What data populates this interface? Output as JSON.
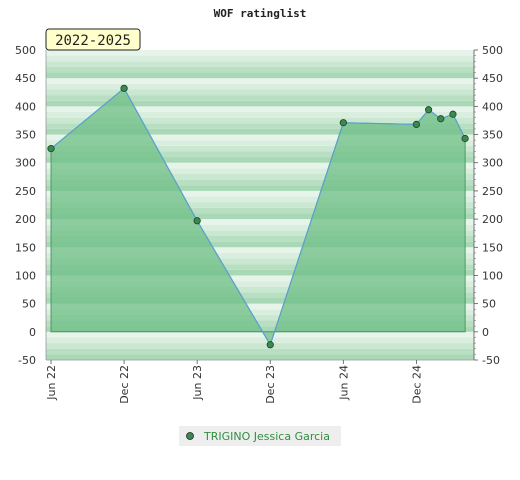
{
  "chart_data": {
    "type": "area",
    "title": "WOF ratinglist",
    "badge": "2022-2025",
    "ylim": [
      -50,
      500
    ],
    "yticks": [
      -50,
      0,
      50,
      100,
      150,
      200,
      250,
      300,
      350,
      400,
      450,
      500
    ],
    "xticks": [
      {
        "label": "Jun 22",
        "t": 0
      },
      {
        "label": "Dec 22",
        "t": 6
      },
      {
        "label": "Jun 23",
        "t": 12
      },
      {
        "label": "Dec 23",
        "t": 18
      },
      {
        "label": "Jun 24",
        "t": 24
      },
      {
        "label": "Dec 24",
        "t": 30
      }
    ],
    "xlim": [
      0,
      34.4
    ],
    "series": [
      {
        "name": "TRIGINO Jessica Garcia",
        "points": [
          {
            "t": 0,
            "y": 325
          },
          {
            "t": 6,
            "y": 432
          },
          {
            "t": 12,
            "y": 197
          },
          {
            "t": 18,
            "y": -23
          },
          {
            "t": 24,
            "y": 371
          },
          {
            "t": 30,
            "y": 368
          },
          {
            "t": 31,
            "y": 394
          },
          {
            "t": 32,
            "y": 378
          },
          {
            "t": 33,
            "y": 386
          },
          {
            "t": 34,
            "y": 343
          }
        ]
      }
    ],
    "colors": {
      "fill": "#6fbf86",
      "line": "#5a9fd0",
      "marker": "#3a8a50",
      "band_dark": "#a9d8b6",
      "band_light": "#e6f4ea",
      "badge_bg": "#ffffcc",
      "legend_bg": "#eeeeee",
      "legend_text": "#2f8f3f"
    }
  }
}
